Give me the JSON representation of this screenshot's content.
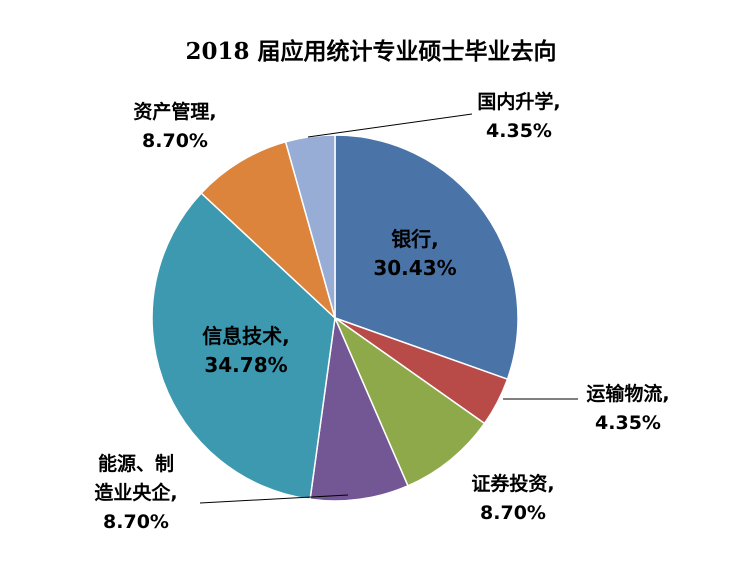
{
  "chart_data": {
    "type": "pie",
    "title": "2018 届应用统计专业硕士毕业去向",
    "slices": [
      {
        "label": "银行,",
        "percent": "30.43%",
        "value": 30.43,
        "color": "#4A74A8"
      },
      {
        "label": "运输物流,",
        "percent": "4.35%",
        "value": 4.35,
        "color": "#B84B47"
      },
      {
        "label": "证券投资,",
        "percent": "8.70%",
        "value": 8.7,
        "color": "#8EA94A"
      },
      {
        "label": "能源、制造业央企,",
        "label_lines": [
          "能源、制",
          "造业央企,"
        ],
        "percent": "8.70%",
        "value": 8.7,
        "color": "#735694"
      },
      {
        "label": "信息技术,",
        "percent": "34.78%",
        "value": 34.78,
        "color": "#3C99B0"
      },
      {
        "label": "资产管理,",
        "percent": "8.70%",
        "value": 8.7,
        "color": "#DD843C"
      },
      {
        "label": "国内升学,",
        "percent": "4.35%",
        "value": 4.35,
        "color": "#97ADD6"
      }
    ],
    "legend": "none",
    "start_angle": "12 o'clock",
    "direction": "clockwise"
  }
}
